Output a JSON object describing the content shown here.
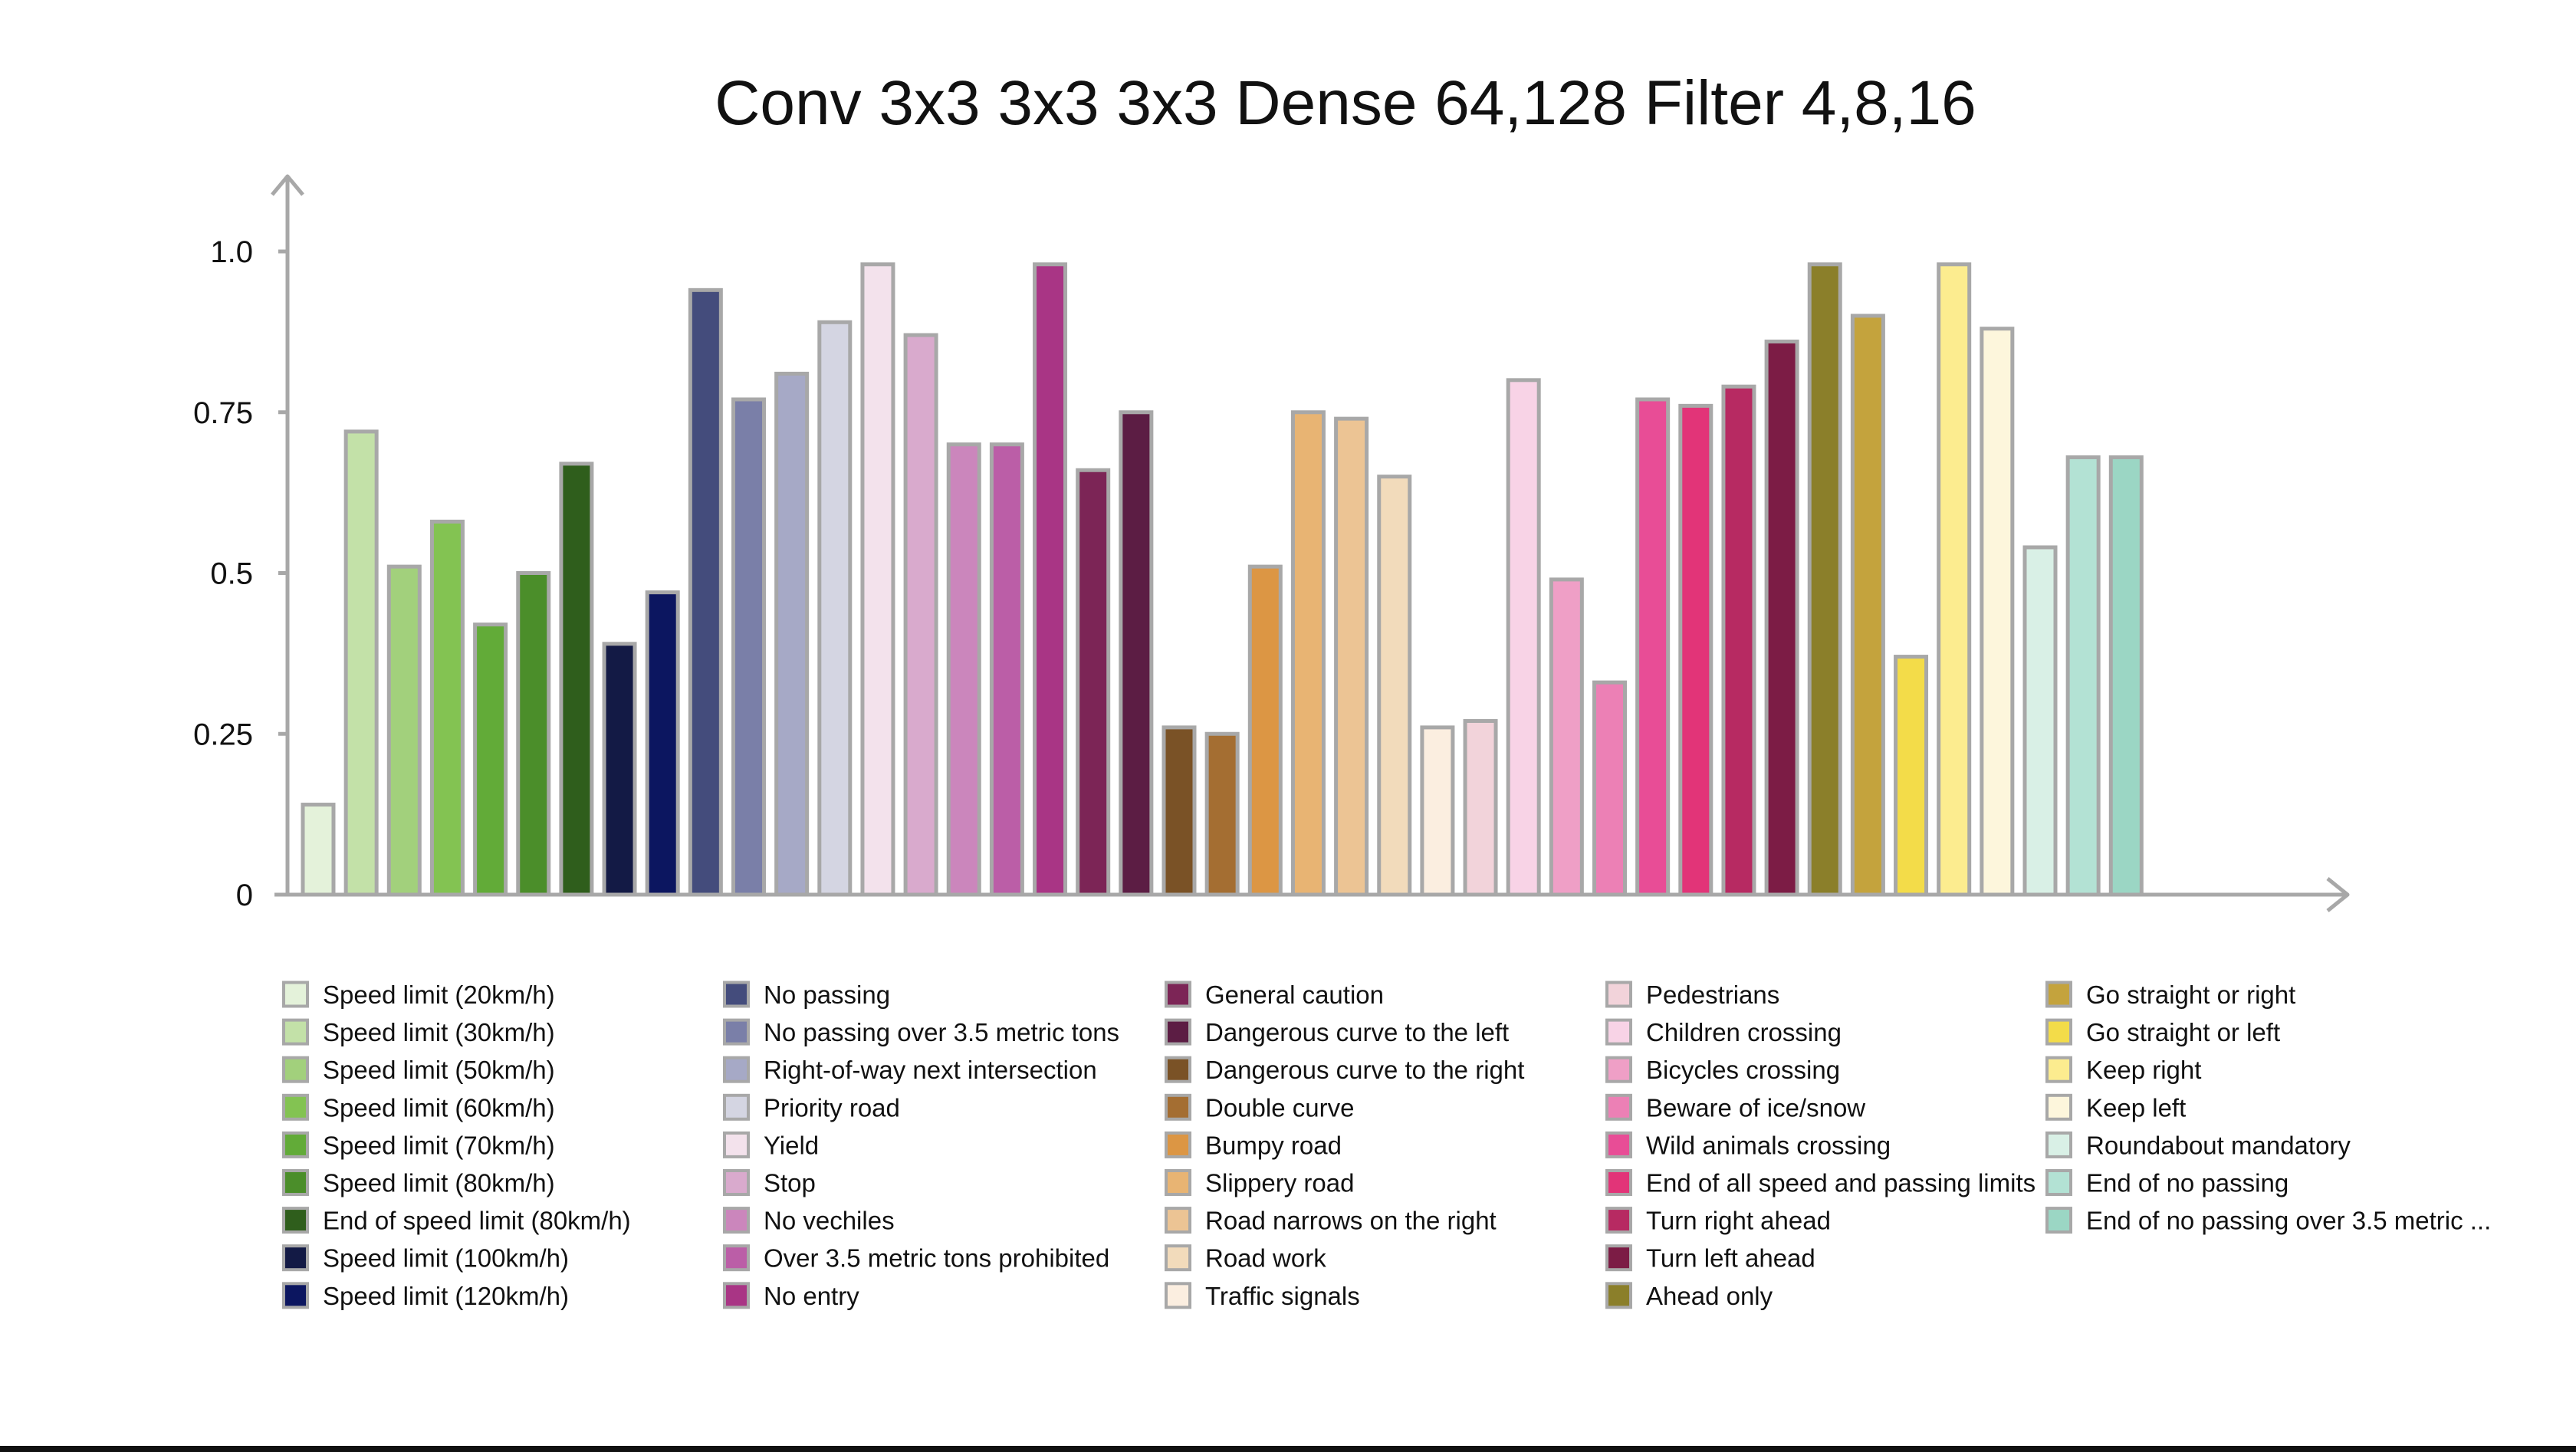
{
  "chart_data": {
    "type": "bar",
    "title": "Conv 3x3 3x3 3x3 Dense 64,128 Filter 4,8,16",
    "xlabel": "",
    "ylabel": "",
    "ylim": [
      0,
      1.0
    ],
    "yticks": [
      {
        "value": 0,
        "label": "0"
      },
      {
        "value": 0.25,
        "label": "0.25"
      },
      {
        "value": 0.5,
        "label": "0.5"
      },
      {
        "value": 0.75,
        "label": "0.75"
      },
      {
        "value": 1.0,
        "label": "1.0"
      }
    ],
    "grid": false,
    "legend_position": "bottom",
    "categories": [
      "Speed limit (20km/h)",
      "Speed limit (30km/h)",
      "Speed limit (50km/h)",
      "Speed limit (60km/h)",
      "Speed limit (70km/h)",
      "Speed limit (80km/h)",
      "End of speed limit (80km/h)",
      "Speed limit (100km/h)",
      "Speed limit (120km/h)",
      "No passing",
      "No passing over 3.5 metric tons",
      "Right-of-way next intersection",
      "Priority road",
      "Yield",
      "Stop",
      "No vechiles",
      "Over 3.5 metric tons prohibited",
      "No entry",
      "General caution",
      "Dangerous curve to the left",
      "Dangerous curve to the right",
      "Double curve",
      "Bumpy road",
      "Slippery road",
      "Road narrows on the right",
      "Road work",
      "Traffic signals",
      "Pedestrians",
      "Children crossing",
      "Bicycles crossing",
      "Beware of ice/snow",
      "Wild animals crossing",
      "End of all speed and passing limits",
      "Turn right ahead",
      "Turn left ahead",
      "Ahead only",
      "Go straight or right",
      "Go straight or left",
      "Keep right",
      "Keep left",
      "Roundabout mandatory",
      "End of no passing",
      "End of no passing over 3.5 metric ..."
    ],
    "values": [
      0.14,
      0.72,
      0.51,
      0.58,
      0.42,
      0.5,
      0.67,
      0.39,
      0.47,
      0.94,
      0.77,
      0.81,
      0.89,
      0.98,
      0.87,
      0.7,
      0.7,
      0.98,
      0.66,
      0.75,
      0.26,
      0.25,
      0.51,
      0.75,
      0.74,
      0.65,
      0.26,
      0.27,
      0.8,
      0.49,
      0.33,
      0.77,
      0.76,
      0.79,
      0.86,
      0.98,
      0.9,
      0.37,
      0.98,
      0.88,
      0.54,
      0.68,
      0.68
    ],
    "colors": [
      "#e4f2da",
      "#c3e1a8",
      "#a2d07c",
      "#83c352",
      "#62ab38",
      "#4b8e2a",
      "#2f5e1c",
      "#131a45",
      "#0c1660",
      "#444c7c",
      "#7a7fa8",
      "#a6a9c6",
      "#d4d5e2",
      "#f3e2ec",
      "#d9aacd",
      "#cb86bc",
      "#bb5ea7",
      "#a93585",
      "#7c2556",
      "#5c1d44",
      "#7a5226",
      "#a46e32",
      "#dc9644",
      "#e8b473",
      "#ecc494",
      "#f2dbbb",
      "#fbeee0",
      "#f2d3da",
      "#f8d3e6",
      "#ef9fc6",
      "#ec80b5",
      "#e84d96",
      "#e23478",
      "#b72a62",
      "#7c1c45",
      "#8b7f2a",
      "#c4a33d",
      "#f3dc49",
      "#fcec8f",
      "#fdf6dc",
      "#d9f0e6",
      "#b3e2d4",
      "#9bd6c4"
    ]
  },
  "colors": {
    "axis": "#a8a8a8",
    "bar_stroke": "#a8a8a8",
    "text": "#111111",
    "bottom_rule": "#111111"
  }
}
